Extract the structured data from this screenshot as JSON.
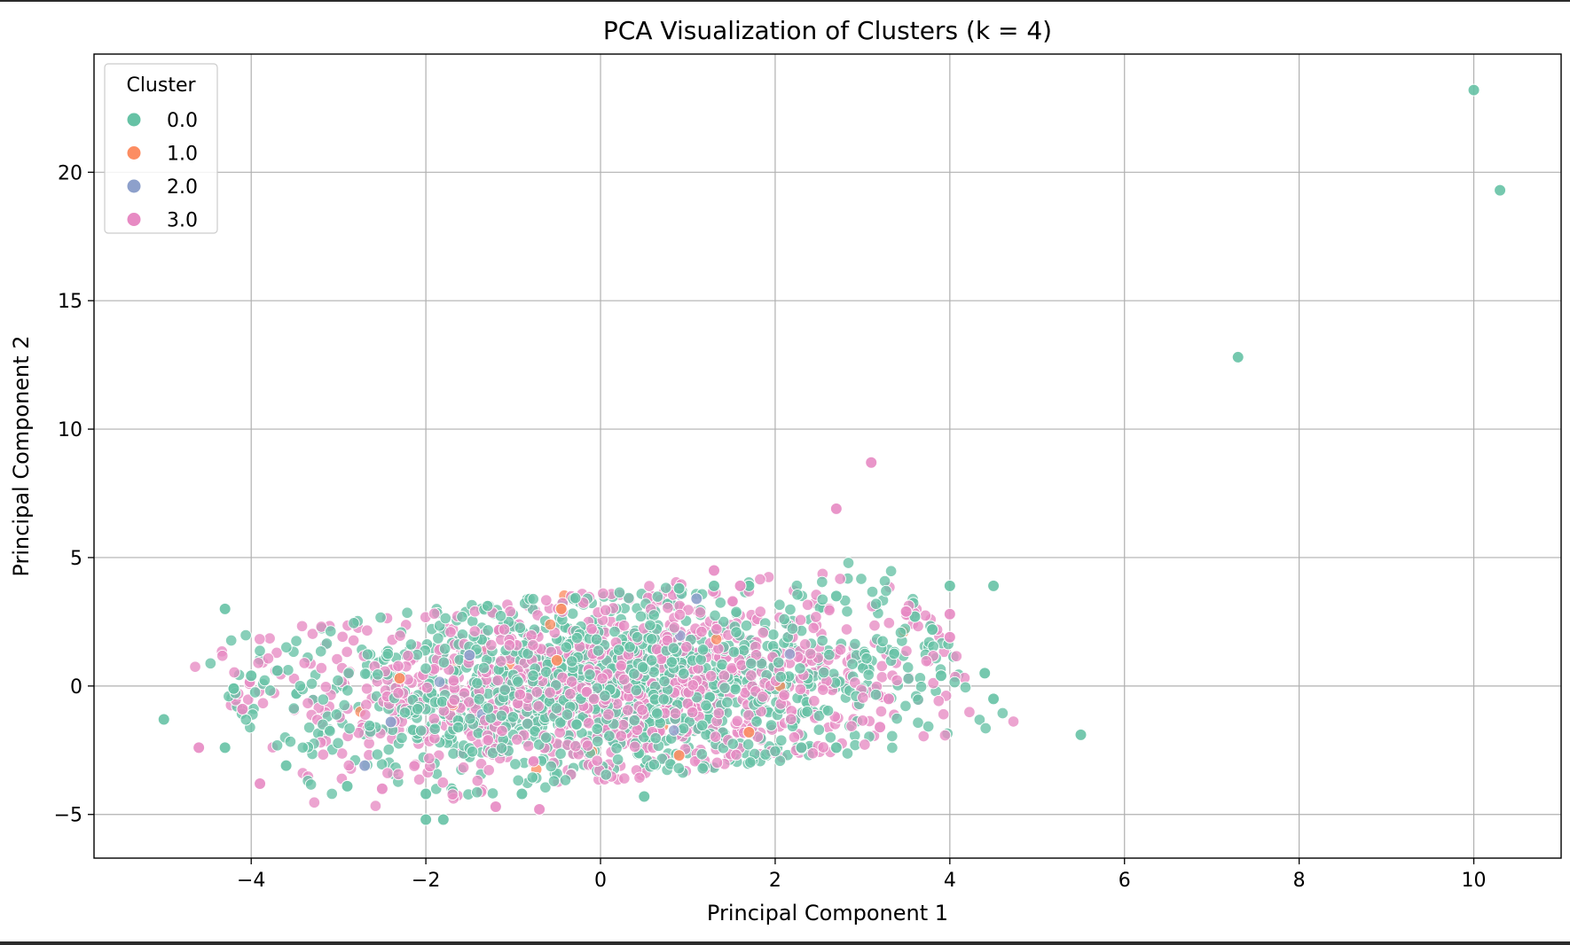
{
  "chart_data": {
    "type": "scatter",
    "title": "PCA Visualization of Clusters (k = 4)",
    "xlabel": "Principal Component 1",
    "ylabel": "Principal Component 2",
    "xlim": [
      -5.8,
      11.0
    ],
    "ylim": [
      -6.7,
      24.6
    ],
    "xticks": [
      -4,
      -2,
      0,
      2,
      4,
      6,
      8,
      10
    ],
    "xtick_labels": [
      "−4",
      "−2",
      "0",
      "2",
      "4",
      "6",
      "8",
      "10"
    ],
    "yticks": [
      -5,
      0,
      5,
      10,
      15,
      20
    ],
    "ytick_labels": [
      "−5",
      "0",
      "5",
      "10",
      "15",
      "20"
    ],
    "grid": true,
    "legend": {
      "title": "Cluster",
      "placement": "top-left",
      "entries": [
        "0.0",
        "1.0",
        "2.0",
        "3.0"
      ]
    },
    "colors": [
      "#66c2a5",
      "#fc8d62",
      "#8da0cb",
      "#e78ac3"
    ],
    "dense_region_note": "Thousands of overlapping points fill an elliptical band roughly spanning x from -4.5 to 4.1 and y from -4 to 4, tilted upward to the right; the band is densest near the origin.",
    "series": [
      {
        "name": "0.0",
        "color": "#66c2a5",
        "points": [
          [
            10.0,
            23.2
          ],
          [
            10.3,
            19.3
          ],
          [
            7.3,
            12.8
          ],
          [
            5.5,
            -1.9
          ],
          [
            4.5,
            3.9
          ],
          [
            4.0,
            3.9
          ],
          [
            4.5,
            -0.5
          ],
          [
            4.4,
            0.5
          ],
          [
            -4.3,
            3.0
          ],
          [
            -5.0,
            -1.3
          ],
          [
            -4.3,
            -2.4
          ],
          [
            -4.2,
            -0.1
          ],
          [
            -2.9,
            -3.9
          ],
          [
            -2.0,
            -5.2
          ],
          [
            -1.8,
            -5.2
          ],
          [
            -2.0,
            -4.2
          ],
          [
            -4.0,
            0.4
          ],
          [
            -3.7,
            0.6
          ],
          [
            -3.6,
            -3.1
          ],
          [
            1.7,
            3.9
          ],
          [
            1.3,
            3.9
          ],
          [
            0.5,
            -4.3
          ],
          [
            -0.9,
            -4.2
          ],
          [
            3.9,
            0.4
          ],
          [
            3.8,
            2.2
          ],
          [
            3.6,
            2.7
          ],
          [
            2.7,
            3.5
          ],
          [
            2.3,
            -2.4
          ],
          [
            2.7,
            -2.4
          ],
          [
            0.9,
            3.8
          ]
        ]
      },
      {
        "name": "1.0",
        "color": "#fc8d62",
        "points": [
          [
            -0.45,
            3.0
          ],
          [
            -2.3,
            0.3
          ],
          [
            1.7,
            -1.8
          ],
          [
            0.9,
            -2.7
          ],
          [
            -0.5,
            1.0
          ]
        ]
      },
      {
        "name": "2.0",
        "color": "#8da0cb",
        "points": [
          [
            -2.7,
            -3.1
          ],
          [
            -2.4,
            -1.4
          ],
          [
            1.1,
            3.4
          ],
          [
            -1.5,
            1.2
          ]
        ]
      },
      {
        "name": "3.0",
        "color": "#e78ac3",
        "points": [
          [
            3.1,
            8.7
          ],
          [
            2.7,
            6.9
          ],
          [
            1.3,
            4.5
          ],
          [
            4.0,
            1.9
          ],
          [
            4.0,
            2.8
          ],
          [
            3.5,
            2.9
          ],
          [
            -4.6,
            -2.4
          ],
          [
            -3.9,
            -3.8
          ],
          [
            -4.1,
            -0.9
          ],
          [
            -0.7,
            -4.8
          ],
          [
            -1.2,
            -4.7
          ],
          [
            -2.5,
            -4.0
          ],
          [
            3.2,
            -1.6
          ],
          [
            3.3,
            -0.5
          ],
          [
            1.6,
            3.9
          ]
        ]
      }
    ]
  }
}
